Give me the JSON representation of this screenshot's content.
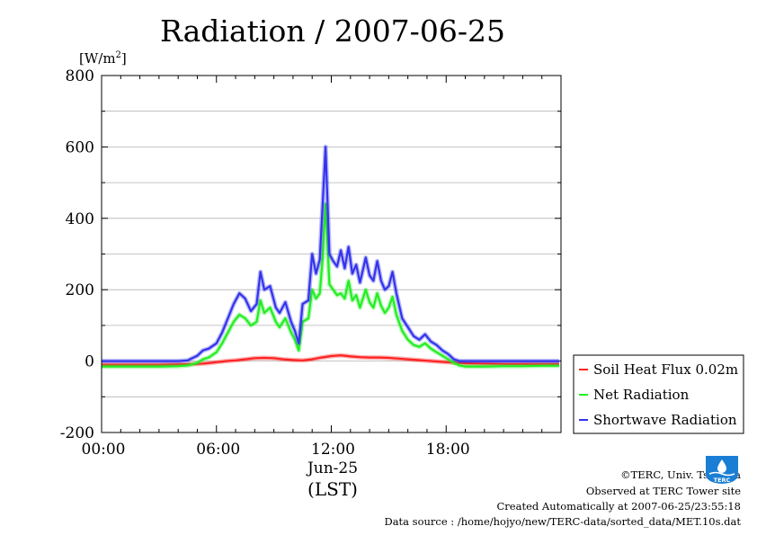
{
  "chart_data": {
    "type": "line",
    "title": "Radiation / 2007-06-25",
    "ylabel_unit": "[W/m",
    "ylabel_sup": "2",
    "ylabel_close": "]",
    "ylim": [
      -200,
      800
    ],
    "yticks": [
      -200,
      0,
      200,
      400,
      600,
      800
    ],
    "ytick_labels": [
      "-200",
      "0",
      "200",
      "400",
      "600",
      "800"
    ],
    "xlim": [
      0,
      24
    ],
    "xticks": [
      0,
      6,
      12,
      18
    ],
    "xtick_labels": [
      "00:00",
      "06:00",
      "12:00",
      "18:00"
    ],
    "x_date_label": "Jun-25",
    "x_unit": "(LST)",
    "grid": true,
    "legend_placement": "right",
    "series": [
      {
        "name": "Soil Heat Flux 0.02m",
        "color": "#ff2222",
        "x": [
          0,
          1,
          2,
          3,
          4,
          5,
          5.5,
          6,
          6.5,
          7,
          7.5,
          8,
          8.5,
          9,
          9.5,
          10,
          10.5,
          11,
          11.5,
          12,
          12.5,
          13,
          13.5,
          14,
          14.5,
          15,
          15.5,
          16,
          16.5,
          17,
          17.5,
          18,
          19,
          20,
          21,
          22,
          23,
          23.9
        ],
        "y": [
          -10,
          -10,
          -10,
          -10,
          -9,
          -8,
          -6,
          -3,
          0,
          2,
          5,
          8,
          9,
          8,
          5,
          3,
          2,
          5,
          10,
          14,
          16,
          13,
          11,
          10,
          10,
          9,
          7,
          5,
          3,
          1,
          -1,
          -3,
          -6,
          -7,
          -8,
          -8,
          -8,
          -8
        ]
      },
      {
        "name": "Net Radiation",
        "color": "#22ee22",
        "x": [
          0,
          1,
          2,
          3,
          4,
          4.5,
          5,
          5.3,
          5.6,
          6,
          6.3,
          6.6,
          6.9,
          7.2,
          7.5,
          7.8,
          8.1,
          8.3,
          8.5,
          8.8,
          9.1,
          9.3,
          9.6,
          9.9,
          10.1,
          10.3,
          10.5,
          10.8,
          11,
          11.2,
          11.4,
          11.55,
          11.7,
          11.9,
          12.1,
          12.3,
          12.5,
          12.7,
          12.9,
          13.1,
          13.3,
          13.5,
          13.8,
          14,
          14.2,
          14.4,
          14.6,
          14.8,
          15,
          15.2,
          15.4,
          15.7,
          16,
          16.3,
          16.6,
          16.9,
          17.2,
          17.5,
          17.8,
          18.1,
          18.4,
          18.7,
          19,
          20,
          21,
          22,
          23,
          23.9
        ],
        "y": [
          -15,
          -15,
          -15,
          -15,
          -14,
          -12,
          -5,
          5,
          10,
          25,
          50,
          80,
          110,
          130,
          120,
          100,
          110,
          170,
          135,
          150,
          110,
          95,
          120,
          80,
          60,
          30,
          110,
          120,
          200,
          175,
          190,
          290,
          440,
          215,
          200,
          185,
          190,
          175,
          225,
          170,
          185,
          150,
          200,
          165,
          150,
          190,
          155,
          135,
          150,
          180,
          130,
          85,
          60,
          45,
          40,
          50,
          35,
          25,
          15,
          5,
          -5,
          -12,
          -15,
          -15,
          -14,
          -14,
          -13,
          -13
        ]
      },
      {
        "name": "Shortwave Radiation",
        "color": "#3333ee",
        "x": [
          0,
          1,
          2,
          3,
          4,
          4.5,
          5,
          5.3,
          5.6,
          6,
          6.3,
          6.6,
          6.9,
          7.2,
          7.5,
          7.8,
          8.1,
          8.3,
          8.5,
          8.8,
          9.1,
          9.3,
          9.6,
          9.9,
          10.1,
          10.3,
          10.5,
          10.8,
          11,
          11.2,
          11.4,
          11.55,
          11.7,
          11.9,
          12.1,
          12.3,
          12.5,
          12.7,
          12.9,
          13.1,
          13.3,
          13.5,
          13.8,
          14,
          14.2,
          14.4,
          14.6,
          14.8,
          15,
          15.2,
          15.4,
          15.7,
          16,
          16.3,
          16.6,
          16.9,
          17.2,
          17.5,
          17.8,
          18.1,
          18.4,
          18.7,
          19,
          20,
          21,
          22,
          23,
          23.9
        ],
        "y": [
          0,
          0,
          0,
          0,
          0,
          2,
          15,
          30,
          35,
          50,
          80,
          120,
          160,
          190,
          175,
          140,
          160,
          250,
          200,
          210,
          150,
          135,
          165,
          110,
          85,
          50,
          160,
          170,
          300,
          245,
          285,
          440,
          600,
          300,
          280,
          265,
          310,
          260,
          320,
          245,
          270,
          220,
          290,
          240,
          225,
          280,
          225,
          200,
          210,
          250,
          190,
          120,
          95,
          70,
          60,
          75,
          55,
          45,
          30,
          20,
          5,
          0,
          0,
          0,
          0,
          0,
          0,
          0
        ]
      }
    ]
  },
  "credits": {
    "copyright": "©TERC, Univ. Tsukuba",
    "observed": "Observed at TERC Tower site",
    "created": "Created Automatically at 2007-06-25/23:55:18",
    "source": "Data source : /home/hojyo/new/TERC-data/sorted_data/MET.10s.dat"
  },
  "logo": {
    "text": "TERC",
    "color": "#1a7fd4"
  }
}
